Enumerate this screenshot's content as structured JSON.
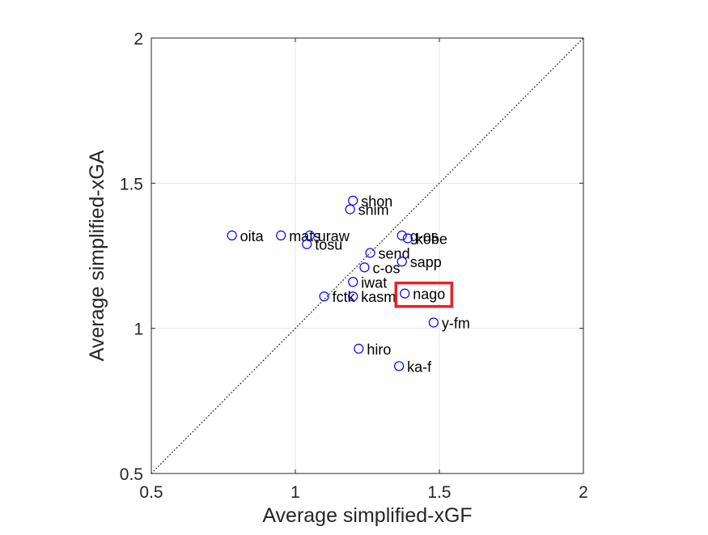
{
  "chart_data": {
    "type": "scatter",
    "xlabel": "Average simplified-xGF",
    "ylabel": "Average simplified-xGA",
    "xlim": [
      0.5,
      2
    ],
    "ylim": [
      0.5,
      2
    ],
    "xticks": [
      0.5,
      1,
      1.5,
      2
    ],
    "yticks": [
      0.5,
      1,
      1.5,
      2
    ],
    "xtick_labels": [
      "0.5",
      "1",
      "1.5",
      "2"
    ],
    "ytick_labels": [
      "0.5",
      "1",
      "1.5",
      "2"
    ],
    "grid": true,
    "reference_line": "y = x (dotted)",
    "marker_color": "#0000ff",
    "highlight_color": "#e8212a",
    "highlighted": "nago",
    "points": [
      {
        "label": "shon",
        "x": 1.2,
        "y": 1.44
      },
      {
        "label": "shim",
        "x": 1.19,
        "y": 1.41
      },
      {
        "label": "oita",
        "x": 0.78,
        "y": 1.32
      },
      {
        "label": "mats",
        "x": 0.95,
        "y": 1.32
      },
      {
        "label": "uraw",
        "x": 1.05,
        "y": 1.32
      },
      {
        "label": "tosu",
        "x": 1.04,
        "y": 1.29
      },
      {
        "label": "g-os",
        "x": 1.37,
        "y": 1.32
      },
      {
        "label": "kobe",
        "x": 1.39,
        "y": 1.31
      },
      {
        "label": "send",
        "x": 1.26,
        "y": 1.26
      },
      {
        "label": "sapp",
        "x": 1.37,
        "y": 1.23
      },
      {
        "label": "c-os",
        "x": 1.24,
        "y": 1.21
      },
      {
        "label": "iwat",
        "x": 1.2,
        "y": 1.16
      },
      {
        "label": "fctk",
        "x": 1.1,
        "y": 1.11
      },
      {
        "label": "kasm",
        "x": 1.2,
        "y": 1.11
      },
      {
        "label": "nago",
        "x": 1.38,
        "y": 1.12
      },
      {
        "label": "y-fm",
        "x": 1.48,
        "y": 1.02
      },
      {
        "label": "hiro",
        "x": 1.22,
        "y": 0.93
      },
      {
        "label": "ka-f",
        "x": 1.36,
        "y": 0.87
      }
    ]
  }
}
